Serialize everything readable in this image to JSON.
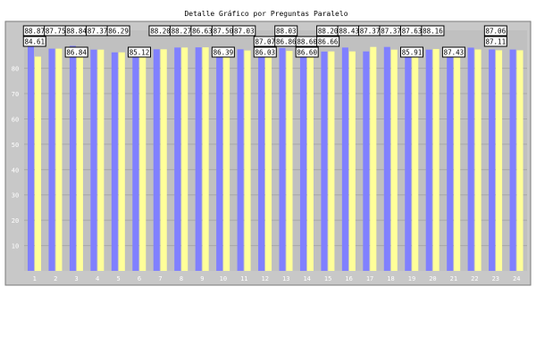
{
  "chart_data": {
    "type": "bar",
    "title": "Detalle Gráfico por Preguntas Paralelo",
    "xlabel": "",
    "ylabel": "",
    "categories": [
      "1",
      "2",
      "3",
      "4",
      "5",
      "6",
      "7",
      "8",
      "9",
      "10",
      "11",
      "12",
      "13",
      "14",
      "15",
      "16",
      "17",
      "18",
      "19",
      "20",
      "21",
      "22",
      "23",
      "24"
    ],
    "ylim": [
      0,
      95
    ],
    "yticks": [
      10,
      20,
      30,
      40,
      50,
      60,
      70,
      80
    ],
    "grid": true,
    "legend": "none",
    "series": [
      {
        "values": [
          88.87,
          87.75,
          88.84,
          87.37,
          86.29,
          85.12,
          87.5,
          88.2,
          88.27,
          86.63,
          87.5,
          87.03,
          88.03,
          86.86,
          86.6,
          88.2,
          86.66,
          88.43,
          87.37,
          87.37,
          87.63,
          88.16,
          87.43,
          87.4
        ]
      },
      {
        "values": [
          84.61,
          87.75,
          86.84,
          87.37,
          86.29,
          85.12,
          87.5,
          88.2,
          88.27,
          86.39,
          87.03,
          86.03,
          86.86,
          86.6,
          86.66,
          86.66,
          88.43,
          87.37,
          85.91,
          87.63,
          87.43,
          87.43,
          87.11,
          87.11
        ]
      }
    ],
    "data_labels": [
      {
        "text": "88.87",
        "category": "1",
        "row": 0
      },
      {
        "text": "84.61",
        "category": "1",
        "row": 1
      },
      {
        "text": "87.75",
        "category": "2",
        "row": 0
      },
      {
        "text": "88.84",
        "category": "3",
        "row": 0
      },
      {
        "text": "86.84",
        "category": "3",
        "row": 2
      },
      {
        "text": "87.37",
        "category": "4",
        "row": 0
      },
      {
        "text": "86.29",
        "category": "5",
        "row": 0
      },
      {
        "text": "85.12",
        "category": "6",
        "row": 2
      },
      {
        "text": "87.50",
        "category": "7",
        "row": 0
      },
      {
        "text": "88.20",
        "category": "7",
        "row": 0
      },
      {
        "text": "88.27",
        "category": "8",
        "row": 0
      },
      {
        "text": "86.63",
        "category": "9",
        "row": 0
      },
      {
        "text": "86.39",
        "category": "10",
        "row": 2
      },
      {
        "text": "87.50",
        "category": "10",
        "row": 0
      },
      {
        "text": "87.03",
        "category": "11",
        "row": 0
      },
      {
        "text": "87.07",
        "category": "12",
        "row": 1
      },
      {
        "text": "86.03",
        "category": "12",
        "row": 2
      },
      {
        "text": "88.03",
        "category": "13",
        "row": 0
      },
      {
        "text": "86.86",
        "category": "13",
        "row": 1
      },
      {
        "text": "88.60",
        "category": "14",
        "row": 1
      },
      {
        "text": "86.60",
        "category": "14",
        "row": 2
      },
      {
        "text": "88.20",
        "category": "15",
        "row": 0
      },
      {
        "text": "86.66",
        "category": "15",
        "row": 1
      },
      {
        "text": "88.43",
        "category": "16",
        "row": 0
      },
      {
        "text": "87.37",
        "category": "17",
        "row": 0
      },
      {
        "text": "87.37",
        "category": "18",
        "row": 0
      },
      {
        "text": "85.91",
        "category": "19",
        "row": 2
      },
      {
        "text": "87.63",
        "category": "19",
        "row": 0
      },
      {
        "text": "88.16",
        "category": "20",
        "row": 0
      },
      {
        "text": "87.43",
        "category": "21",
        "row": 2
      },
      {
        "text": "87.06",
        "category": "23",
        "row": 0
      },
      {
        "text": "87.11",
        "category": "23",
        "row": 1
      }
    ],
    "colors": {
      "series": [
        "#8080ff",
        "#ffff99"
      ],
      "plot_background": "#c0c0c0",
      "frame_background": "#c8c8c8",
      "label_fill": "#ffffff",
      "grid": "#a8a8a8",
      "text": "#000000",
      "tick_text": "#ffffff"
    }
  }
}
